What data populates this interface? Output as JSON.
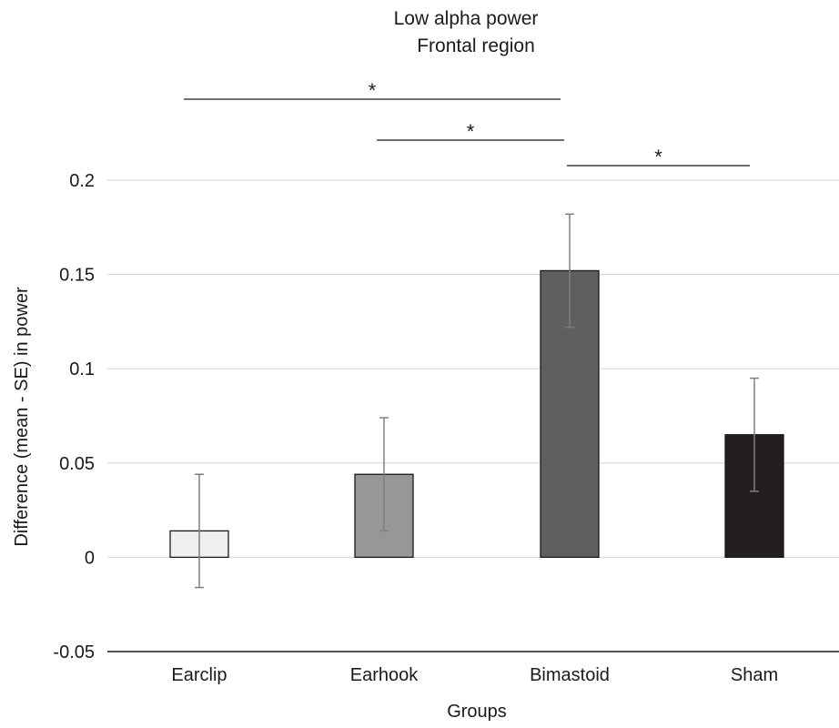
{
  "chart_data": {
    "type": "bar",
    "title": "Low alpha power",
    "subtitle": "Frontal region",
    "xlabel": "Groups",
    "ylabel": "Difference (mean - SE) in power",
    "ylim": [
      -0.05,
      0.2
    ],
    "yticks": [
      -0.05,
      0,
      0.05,
      0.1,
      0.15,
      0.2
    ],
    "ytick_labels": [
      "-0.05",
      "0",
      "0.05",
      "0.1",
      "0.15",
      "0.2"
    ],
    "grid": true,
    "categories": [
      "Earclip",
      "Earhook",
      "Bimastoid",
      "Sham"
    ],
    "values": [
      0.014,
      0.044,
      0.152,
      0.065
    ],
    "errors": [
      0.03,
      0.03,
      0.03,
      0.03
    ],
    "colors": [
      "#efefef",
      "#97979a",
      "#5e5f61",
      "#231f20"
    ],
    "significance": [
      {
        "from": "Earclip",
        "to": "Bimastoid",
        "label": "*"
      },
      {
        "from": "Earhook",
        "to": "Bimastoid",
        "label": "*"
      },
      {
        "from": "Bimastoid",
        "to": "Sham",
        "label": "*"
      }
    ]
  }
}
